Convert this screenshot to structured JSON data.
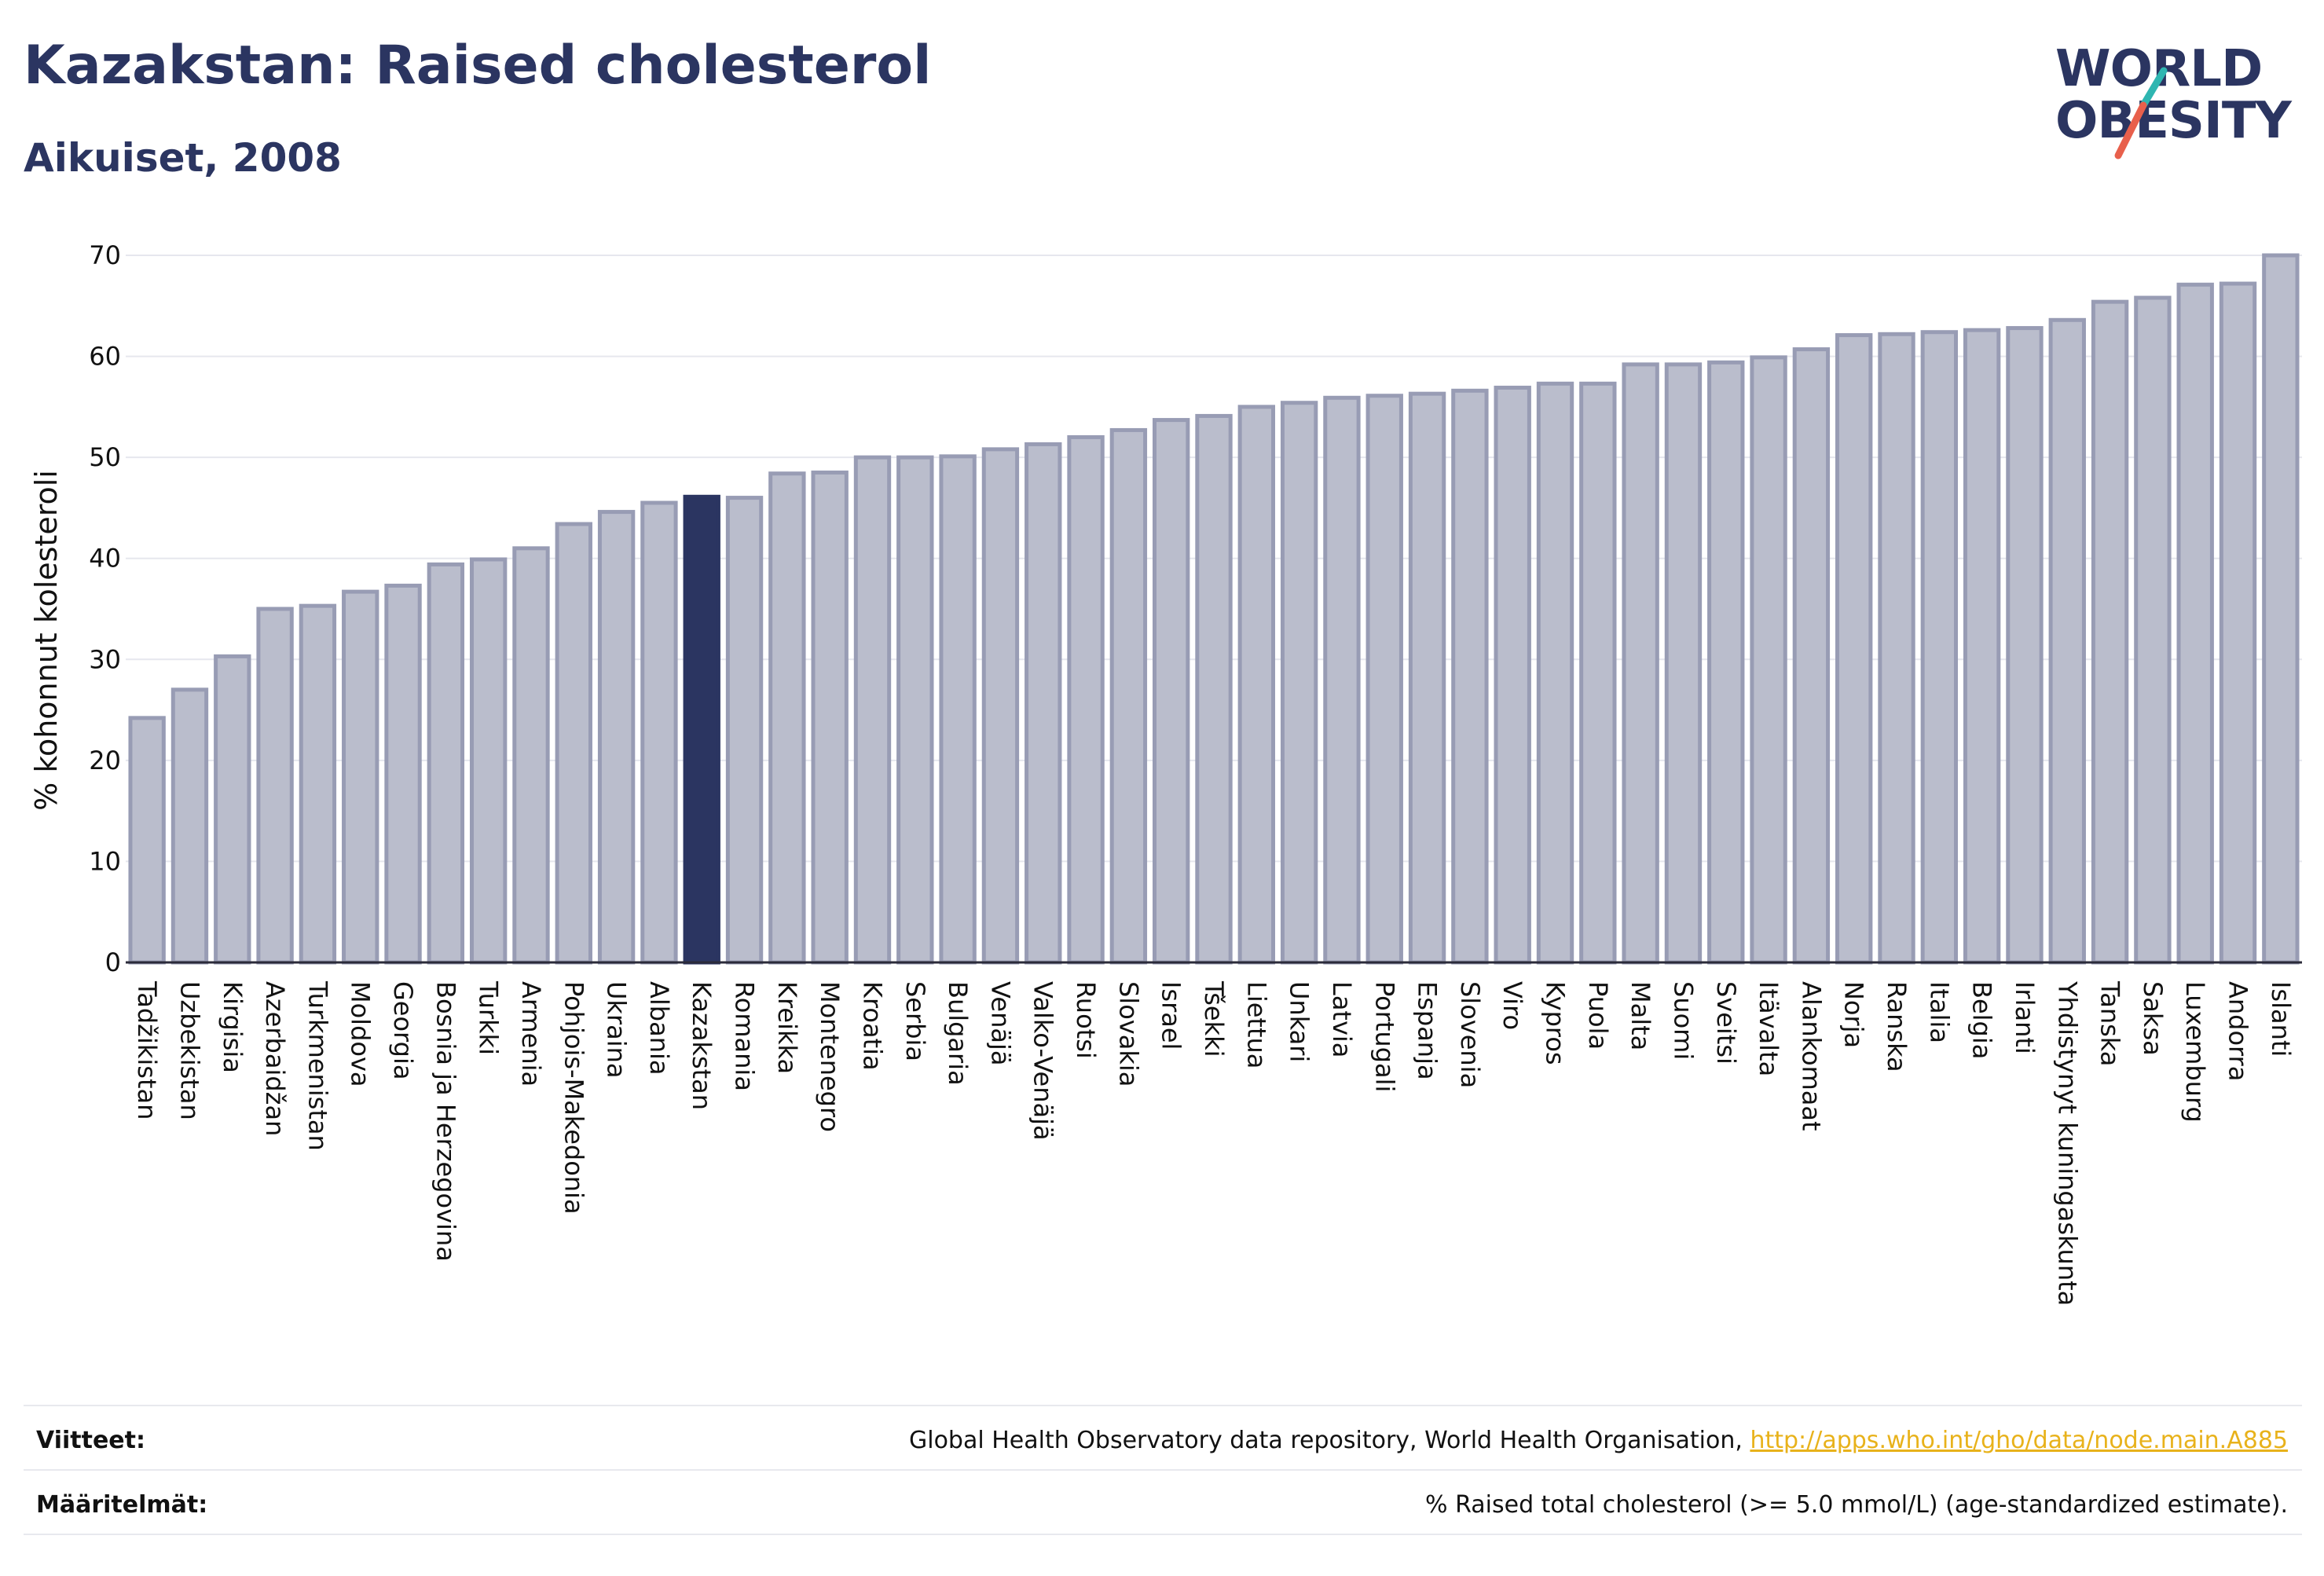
{
  "header": {
    "title": "Kazakstan: Raised cholesterol",
    "subtitle": "Aikuiset, 2008"
  },
  "logo": {
    "line1": "WORLD",
    "line2": "OBESITY",
    "accent_colors": [
      "#2fb6b1",
      "#e8604c"
    ]
  },
  "colors": {
    "bar": "#babdcc",
    "bar_stroke": "#989cb4",
    "highlight": "#2b3561",
    "grid": "#e6e7ee",
    "axis_text": "#111111"
  },
  "chart_data": {
    "type": "bar",
    "ylabel": "% kohonnut kolesteroli",
    "ylim": [
      0,
      70
    ],
    "yticks": [
      0,
      10,
      20,
      30,
      40,
      50,
      60,
      70
    ],
    "grid": true,
    "highlight_category": "Kazakstan",
    "categories": [
      "Tadžikistan",
      "Uzbekistan",
      "Kirgisia",
      "Azerbaidžan",
      "Turkmenistan",
      "Moldova",
      "Georgia",
      "Bosnia ja Herzegovina",
      "Turkki",
      "Armenia",
      "Pohjois-Makedonia",
      "Ukraina",
      "Albania",
      "Kazakstan",
      "Romania",
      "Kreikka",
      "Montenegro",
      "Kroatia",
      "Serbia",
      "Bulgaria",
      "Venäjä",
      "Valko-Venäjä",
      "Ruotsi",
      "Slovakia",
      "Israel",
      "Tšekki",
      "Liettua",
      "Unkari",
      "Latvia",
      "Portugali",
      "Espanja",
      "Slovenia",
      "Viro",
      "Kypros",
      "Puola",
      "Malta",
      "Suomi",
      "Sveitsi",
      "Itävalta",
      "Alankomaat",
      "Norja",
      "Ranska",
      "Italia",
      "Belgia",
      "Irlanti",
      "Yhdistynyt kuningaskunta",
      "Tanska",
      "Saksa",
      "Luxemburg",
      "Andorra",
      "Islanti"
    ],
    "values": [
      24.2,
      27.0,
      30.3,
      35.0,
      35.3,
      36.7,
      37.3,
      39.4,
      39.9,
      41.0,
      43.4,
      44.6,
      45.5,
      46.1,
      46.0,
      48.4,
      48.5,
      50.0,
      50.0,
      50.1,
      50.8,
      51.3,
      52.0,
      52.7,
      53.7,
      54.1,
      55.0,
      55.4,
      55.9,
      56.1,
      56.3,
      56.6,
      56.9,
      57.3,
      57.3,
      59.2,
      59.2,
      59.4,
      59.9,
      60.7,
      62.1,
      62.2,
      62.4,
      62.6,
      62.8,
      63.6,
      65.4,
      65.8,
      67.1,
      67.2,
      70.0
    ]
  },
  "footer": {
    "sources_label": "Viitteet:",
    "sources_text": "Global Health Observatory data repository, World Health Organisation,",
    "sources_link": "http://apps.who.int/gho/data/node.main.A885",
    "definitions_label": "Määritelmät:",
    "definitions_text": "% Raised total cholesterol (>= 5.0 mmol/L) (age-standardized estimate)."
  }
}
